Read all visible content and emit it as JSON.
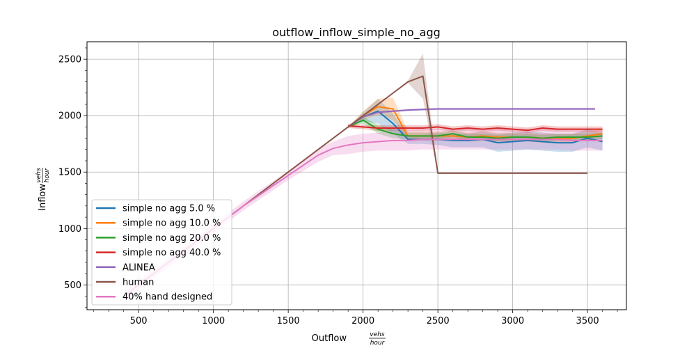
{
  "chart_data": {
    "type": "line",
    "title": "outflow_inflow_simple_no_agg",
    "xlabel": "Outflow",
    "xlabel_unit_num": "vehs",
    "xlabel_unit_den": "hour",
    "ylabel": "Inflow",
    "ylabel_unit_num": "vehs",
    "ylabel_unit_den": "hour",
    "xlim": [
      155,
      3760
    ],
    "ylim": [
      280,
      2655
    ],
    "xticks": [
      500,
      1000,
      1500,
      2000,
      2500,
      3000,
      3500
    ],
    "yticks": [
      500,
      1000,
      1500,
      2000,
      2500
    ],
    "xtick_labels": [
      "500",
      "1000",
      "1500",
      "2000",
      "2500",
      "3000",
      "3500"
    ],
    "ytick_labels": [
      "500",
      "1000",
      "1500",
      "2000",
      "2500"
    ],
    "grid": true,
    "legend_position": "lower-left",
    "shared_ramp": {
      "x": [
        400,
        800,
        1200,
        1500,
        1700,
        1900
      ],
      "y": [
        400,
        800,
        1200,
        1500,
        1700,
        1900
      ]
    },
    "series": [
      {
        "name": "simple no agg 5.0 %",
        "color": "#1f77b4",
        "x": [
          1900,
          2000,
          2100,
          2200,
          2300,
          2400,
          2500,
          2600,
          2700,
          2800,
          2900,
          3000,
          3100,
          3200,
          3300,
          3400,
          3500,
          3600
        ],
        "y": [
          1900,
          1990,
          2040,
          1930,
          1790,
          1790,
          1790,
          1780,
          1780,
          1790,
          1760,
          1770,
          1780,
          1770,
          1760,
          1760,
          1800,
          1770
        ],
        "band": [
          0,
          40,
          110,
          90,
          40,
          40,
          50,
          60,
          60,
          70,
          80,
          80,
          80,
          80,
          80,
          80,
          80,
          80
        ]
      },
      {
        "name": "simple no agg 10.0 %",
        "color": "#ff7f0e",
        "x": [
          1900,
          2000,
          2100,
          2200,
          2300,
          2400,
          2500,
          2600,
          2700,
          2800,
          2900,
          3000,
          3100,
          3200,
          3300,
          3400,
          3500,
          3600
        ],
        "y": [
          1900,
          2000,
          2080,
          2060,
          1820,
          1820,
          1820,
          1820,
          1810,
          1820,
          1810,
          1810,
          1810,
          1800,
          1800,
          1800,
          1820,
          1840
        ],
        "band": [
          0,
          40,
          70,
          100,
          40,
          40,
          40,
          40,
          40,
          40,
          40,
          40,
          40,
          40,
          40,
          40,
          40,
          40
        ]
      },
      {
        "name": "simple no agg 20.0 %",
        "color": "#2ca02c",
        "x": [
          1900,
          2000,
          2100,
          2200,
          2300,
          2400,
          2500,
          2600,
          2700,
          2800,
          2900,
          3000,
          3100,
          3200,
          3300,
          3400,
          3500,
          3600
        ],
        "y": [
          1900,
          1960,
          1880,
          1840,
          1820,
          1820,
          1820,
          1840,
          1810,
          1810,
          1800,
          1810,
          1810,
          1800,
          1810,
          1810,
          1810,
          1820
        ],
        "band": [
          0,
          30,
          40,
          40,
          30,
          30,
          30,
          30,
          30,
          30,
          30,
          30,
          30,
          30,
          30,
          30,
          30,
          30
        ]
      },
      {
        "name": "simple no agg 40.0 %",
        "color": "#d62728",
        "x": [
          1900,
          2000,
          2100,
          2200,
          2300,
          2400,
          2500,
          2600,
          2700,
          2800,
          2900,
          3000,
          3100,
          3200,
          3300,
          3400,
          3500,
          3600
        ],
        "y": [
          1910,
          1900,
          1890,
          1890,
          1890,
          1890,
          1900,
          1880,
          1890,
          1880,
          1890,
          1880,
          1870,
          1890,
          1880,
          1880,
          1880,
          1880
        ],
        "band": [
          20,
          20,
          25,
          25,
          25,
          25,
          25,
          25,
          25,
          25,
          25,
          25,
          25,
          25,
          25,
          25,
          25,
          25
        ]
      },
      {
        "name": "ALINEA",
        "color": "#9467bd",
        "x": [
          1900,
          2000,
          2100,
          2200,
          2300,
          2400,
          2500,
          2600,
          2700,
          2800,
          2900,
          3000,
          3100,
          3200,
          3300,
          3400,
          3500,
          3550
        ],
        "y": [
          1900,
          1990,
          2030,
          2040,
          2050,
          2055,
          2060,
          2060,
          2060,
          2060,
          2060,
          2060,
          2060,
          2060,
          2060,
          2060,
          2060,
          2060
        ],
        "band": [
          0,
          10,
          10,
          10,
          10,
          10,
          10,
          10,
          10,
          10,
          10,
          10,
          10,
          10,
          10,
          10,
          10,
          10
        ]
      },
      {
        "name": "human",
        "color": "#8c564b",
        "x": [
          1900,
          2000,
          2100,
          2200,
          2300,
          2400,
          2500,
          2600,
          2700,
          2800,
          2900,
          3000,
          3100,
          3200,
          3300,
          3400,
          3500
        ],
        "y": [
          1900,
          2000,
          2100,
          2200,
          2300,
          2350,
          1490,
          1490,
          1490,
          1490,
          1490,
          1490,
          1490,
          1490,
          1490,
          1490,
          1490
        ],
        "band": [
          0,
          0,
          0,
          0,
          10,
          200,
          5,
          0,
          0,
          0,
          0,
          0,
          0,
          0,
          0,
          0,
          0
        ]
      },
      {
        "name": "40% hand designed",
        "color": "#e377c2",
        "x": [
          400,
          800,
          1200,
          1500,
          1700,
          1800,
          1900,
          2000,
          2100,
          2200,
          2300,
          2400,
          2500,
          2600,
          2700,
          2800,
          2900,
          3000,
          3100,
          3200,
          3300,
          3400,
          3500,
          3600
        ],
        "y": [
          400,
          800,
          1200,
          1470,
          1650,
          1710,
          1740,
          1760,
          1770,
          1780,
          1780,
          1790,
          1790,
          1790,
          1790,
          1790,
          1790,
          1790,
          1790,
          1790,
          1790,
          1780,
          1780,
          1780
        ],
        "band": [
          40,
          40,
          40,
          40,
          60,
          60,
          80,
          80,
          80,
          90,
          90,
          90,
          90,
          90,
          90,
          90,
          90,
          90,
          90,
          90,
          90,
          90,
          90,
          90
        ]
      }
    ]
  }
}
